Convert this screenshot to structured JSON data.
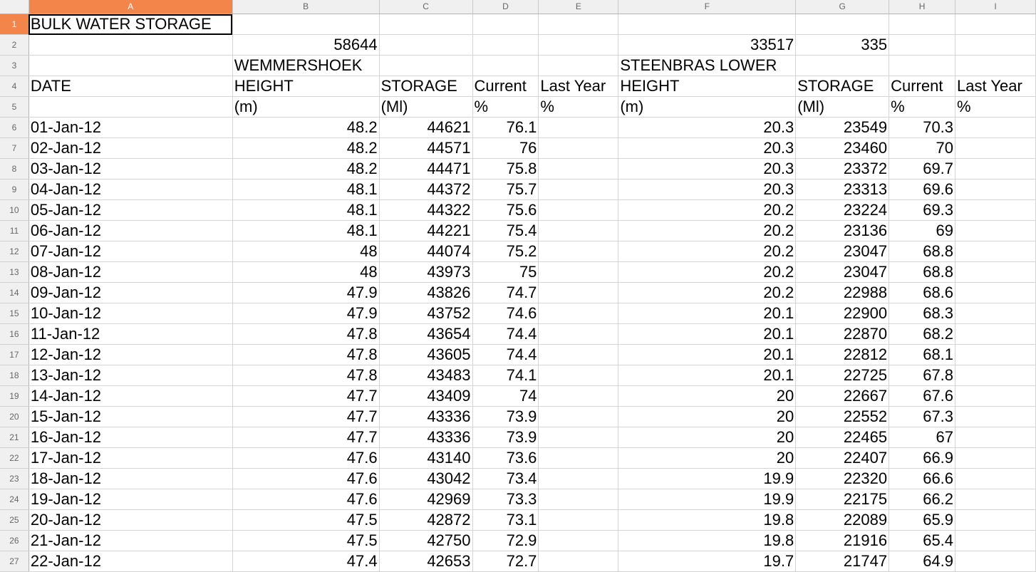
{
  "columns": [
    "A",
    "B",
    "C",
    "D",
    "E",
    "F",
    "G",
    "H",
    "I"
  ],
  "selected_column": "A",
  "active_cell": {
    "row": 1,
    "col": "A"
  },
  "colors": {
    "selection": "#f3854a",
    "header_bg": "#f0f0f0",
    "grid": "#d4d4d4"
  },
  "rows": [
    {
      "n": "1",
      "cells": [
        "BULK WATER STORAGE",
        "",
        "",
        "",
        "",
        "",
        "",
        "",
        ""
      ]
    },
    {
      "n": "2",
      "cells": [
        "",
        "58644",
        "",
        "",
        "",
        "33517",
        "335",
        "",
        ""
      ]
    },
    {
      "n": "3",
      "cells": [
        "",
        "WEMMERSHOEK",
        "",
        "",
        "",
        "STEENBRAS LOWER",
        "",
        "",
        ""
      ]
    },
    {
      "n": "4",
      "cells": [
        "DATE",
        "HEIGHT",
        "STORAGE",
        "Current",
        "Last Year",
        "HEIGHT",
        "STORAGE",
        "Current",
        "Last Year"
      ]
    },
    {
      "n": "5",
      "cells": [
        "",
        "(m)",
        "(Ml)",
        "%",
        "%",
        "(m)",
        "(Ml)",
        "%",
        "%"
      ]
    },
    {
      "n": "6",
      "cells": [
        "01-Jan-12",
        "48.2",
        "44621",
        "76.1",
        "",
        "20.3",
        "23549",
        "70.3",
        ""
      ]
    },
    {
      "n": "7",
      "cells": [
        "02-Jan-12",
        "48.2",
        "44571",
        "76",
        "",
        "20.3",
        "23460",
        "70",
        ""
      ]
    },
    {
      "n": "8",
      "cells": [
        "03-Jan-12",
        "48.2",
        "44471",
        "75.8",
        "",
        "20.3",
        "23372",
        "69.7",
        ""
      ]
    },
    {
      "n": "9",
      "cells": [
        "04-Jan-12",
        "48.1",
        "44372",
        "75.7",
        "",
        "20.3",
        "23313",
        "69.6",
        ""
      ]
    },
    {
      "n": "10",
      "cells": [
        "05-Jan-12",
        "48.1",
        "44322",
        "75.6",
        "",
        "20.2",
        "23224",
        "69.3",
        ""
      ]
    },
    {
      "n": "11",
      "cells": [
        "06-Jan-12",
        "48.1",
        "44221",
        "75.4",
        "",
        "20.2",
        "23136",
        "69",
        ""
      ]
    },
    {
      "n": "12",
      "cells": [
        "07-Jan-12",
        "48",
        "44074",
        "75.2",
        "",
        "20.2",
        "23047",
        "68.8",
        ""
      ]
    },
    {
      "n": "13",
      "cells": [
        "08-Jan-12",
        "48",
        "43973",
        "75",
        "",
        "20.2",
        "23047",
        "68.8",
        ""
      ]
    },
    {
      "n": "14",
      "cells": [
        "09-Jan-12",
        "47.9",
        "43826",
        "74.7",
        "",
        "20.2",
        "22988",
        "68.6",
        ""
      ]
    },
    {
      "n": "15",
      "cells": [
        "10-Jan-12",
        "47.9",
        "43752",
        "74.6",
        "",
        "20.1",
        "22900",
        "68.3",
        ""
      ]
    },
    {
      "n": "16",
      "cells": [
        "11-Jan-12",
        "47.8",
        "43654",
        "74.4",
        "",
        "20.1",
        "22870",
        "68.2",
        ""
      ]
    },
    {
      "n": "17",
      "cells": [
        "12-Jan-12",
        "47.8",
        "43605",
        "74.4",
        "",
        "20.1",
        "22812",
        "68.1",
        ""
      ]
    },
    {
      "n": "18",
      "cells": [
        "13-Jan-12",
        "47.8",
        "43483",
        "74.1",
        "",
        "20.1",
        "22725",
        "67.8",
        ""
      ]
    },
    {
      "n": "19",
      "cells": [
        "14-Jan-12",
        "47.7",
        "43409",
        "74",
        "",
        "20",
        "22667",
        "67.6",
        ""
      ]
    },
    {
      "n": "20",
      "cells": [
        "15-Jan-12",
        "47.7",
        "43336",
        "73.9",
        "",
        "20",
        "22552",
        "67.3",
        ""
      ]
    },
    {
      "n": "21",
      "cells": [
        "16-Jan-12",
        "47.7",
        "43336",
        "73.9",
        "",
        "20",
        "22465",
        "67",
        ""
      ]
    },
    {
      "n": "22",
      "cells": [
        "17-Jan-12",
        "47.6",
        "43140",
        "73.6",
        "",
        "20",
        "22407",
        "66.9",
        ""
      ]
    },
    {
      "n": "23",
      "cells": [
        "18-Jan-12",
        "47.6",
        "43042",
        "73.4",
        "",
        "19.9",
        "22320",
        "66.6",
        ""
      ]
    },
    {
      "n": "24",
      "cells": [
        "19-Jan-12",
        "47.6",
        "42969",
        "73.3",
        "",
        "19.9",
        "22175",
        "66.2",
        ""
      ]
    },
    {
      "n": "25",
      "cells": [
        "20-Jan-12",
        "47.5",
        "42872",
        "73.1",
        "",
        "19.8",
        "22089",
        "65.9",
        ""
      ]
    },
    {
      "n": "26",
      "cells": [
        "21-Jan-12",
        "47.5",
        "42750",
        "72.9",
        "",
        "19.8",
        "21916",
        "65.4",
        ""
      ]
    },
    {
      "n": "27",
      "cells": [
        "22-Jan-12",
        "47.4",
        "42653",
        "72.7",
        "",
        "19.7",
        "21747",
        "64.9",
        ""
      ]
    }
  ]
}
